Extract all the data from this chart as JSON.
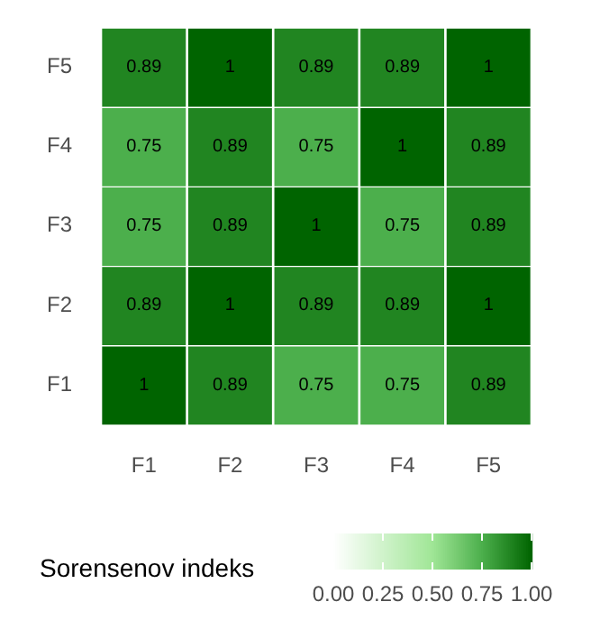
{
  "chart_data": {
    "type": "heatmap",
    "categories": [
      "F1",
      "F2",
      "F3",
      "F4",
      "F5"
    ],
    "y_categories": [
      "F5",
      "F4",
      "F3",
      "F2",
      "F1"
    ],
    "cells": [
      [
        0.89,
        1,
        0.89,
        0.89,
        1
      ],
      [
        0.75,
        0.89,
        0.75,
        1,
        0.89
      ],
      [
        0.75,
        0.89,
        1,
        0.75,
        0.89
      ],
      [
        0.89,
        1,
        0.89,
        0.89,
        1
      ],
      [
        1,
        0.89,
        0.75,
        0.75,
        0.89
      ]
    ],
    "data_labels": true,
    "clabel": "Sorensenov indeks",
    "clim": [
      0,
      1
    ],
    "cticks": [
      {
        "value": 0,
        "label": "0.00"
      },
      {
        "value": 0.25,
        "label": "0.25"
      },
      {
        "value": 0.5,
        "label": "0.50"
      },
      {
        "value": 0.75,
        "label": "0.75"
      },
      {
        "value": 1,
        "label": "1.00"
      }
    ]
  }
}
